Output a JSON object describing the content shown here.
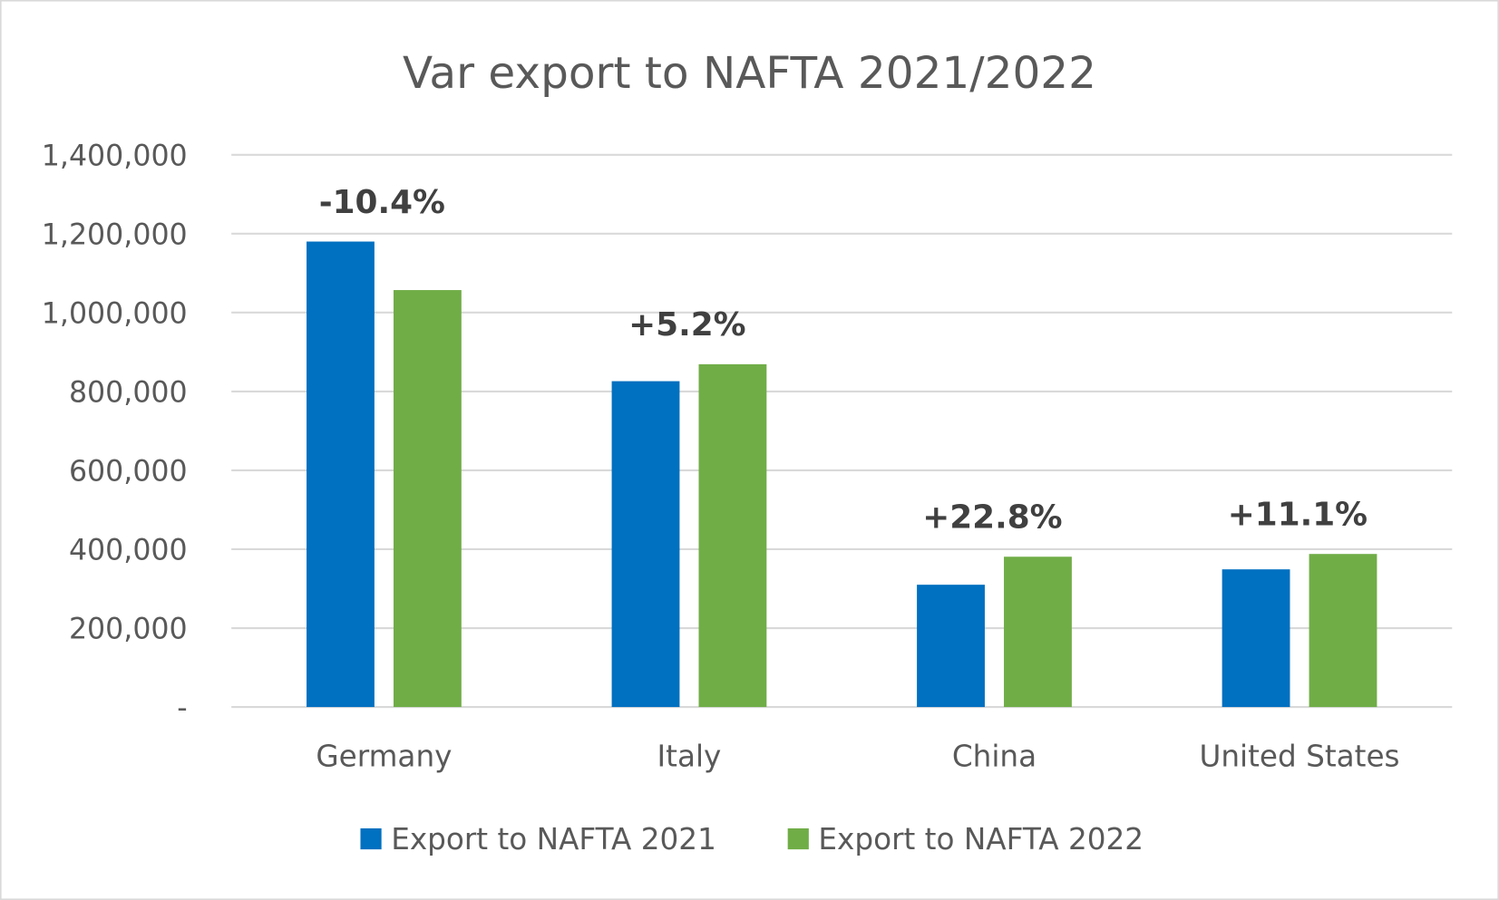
{
  "chart_data": {
    "type": "bar",
    "title": "Var export to NAFTA 2021/2022",
    "categories": [
      "Germany",
      "Italy",
      "China",
      "United States"
    ],
    "series": [
      {
        "name": "Export to NAFTA 2021",
        "color": "#0070C0",
        "values": [
          1180000,
          826000,
          310000,
          349000
        ]
      },
      {
        "name": "Export to NAFTA 2022",
        "color": "#70AD47",
        "values": [
          1057000,
          869000,
          381000,
          388000
        ]
      }
    ],
    "annotations": [
      "-10.4%",
      "+5.2%",
      "+22.8%",
      "+11.1%"
    ],
    "yticks": [
      "-",
      "200,000",
      "400,000",
      "600,000",
      "800,000",
      "1,000,000",
      "1,200,000",
      "1,400,000"
    ],
    "ylim": [
      0,
      1400000
    ],
    "ystep": 200000,
    "grid": true,
    "legend": "bottom",
    "xlabel": "",
    "ylabel": ""
  }
}
